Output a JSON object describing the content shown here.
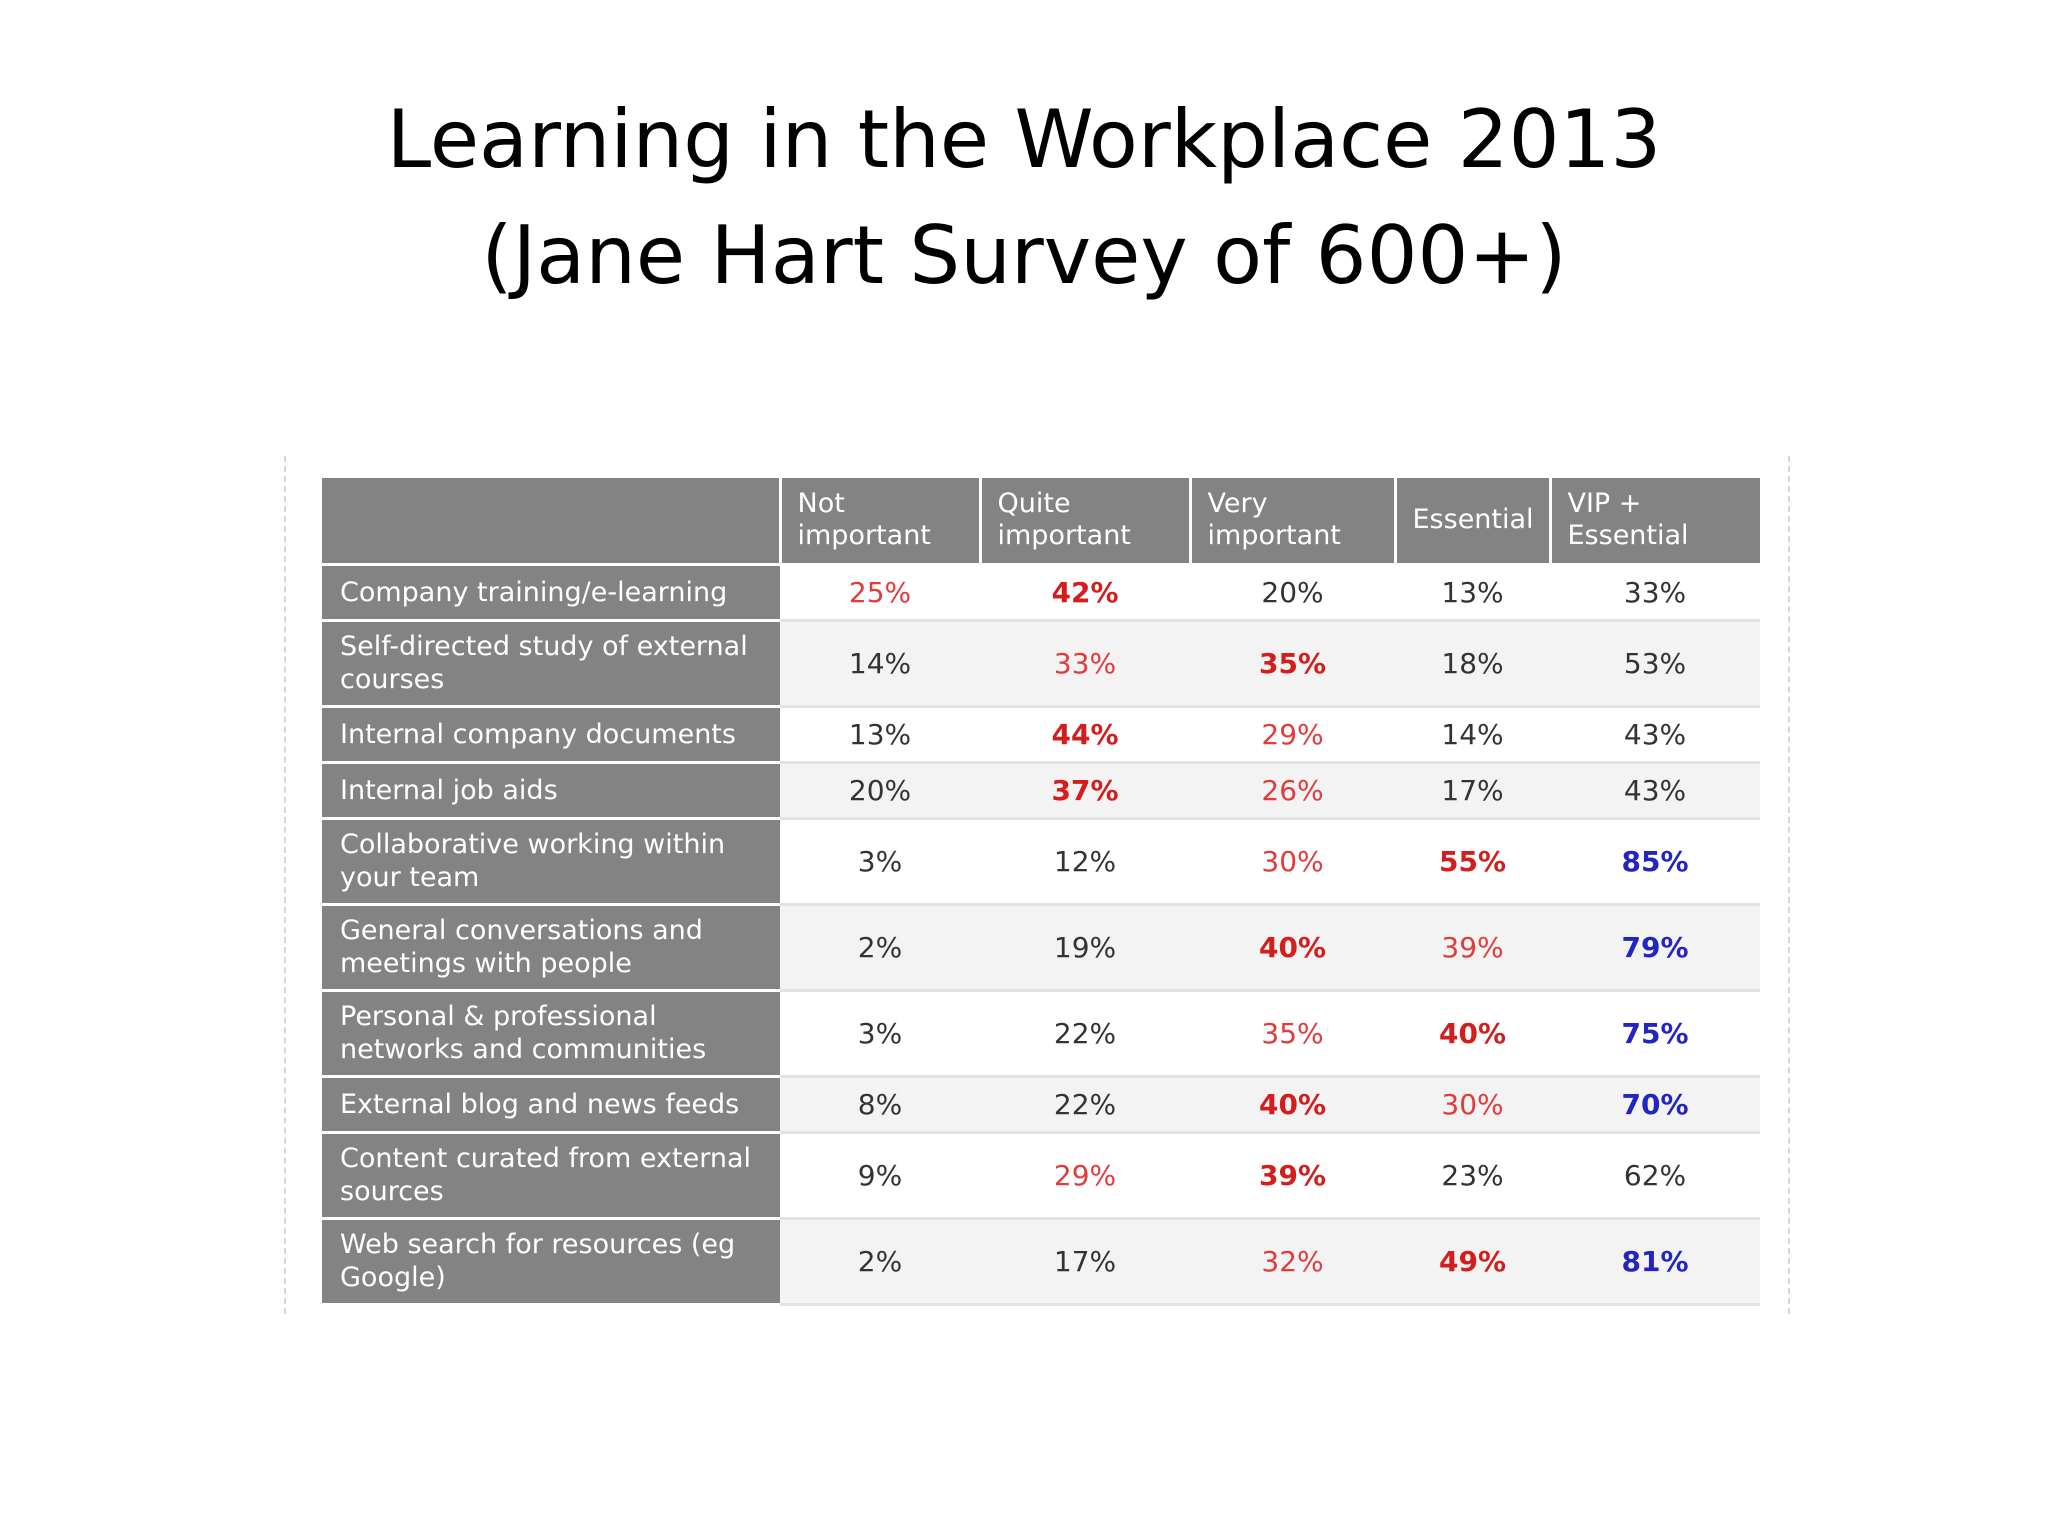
{
  "title_lines": [
    "Learning in the Workplace 2013",
    "(Jane Hart Survey of 600+)"
  ],
  "colors": {
    "header_bg": "#838383",
    "red": "#e23b3b",
    "red_bold": "#d41e1e",
    "blue_bold": "#2424c0",
    "text": "#333333"
  },
  "chart_data": {
    "type": "table",
    "columns": [
      "Not important",
      "Quite important",
      "Very important",
      "Essential",
      "VIP + Essential"
    ],
    "column_lines": [
      [
        "Not",
        "important"
      ],
      [
        "Quite",
        "important"
      ],
      [
        "Very",
        "important"
      ],
      [
        "Essential"
      ],
      [
        "VIP +",
        "Essential"
      ]
    ],
    "rows": [
      {
        "label": "Company training/e-learning",
        "values": [
          "25%",
          "42%",
          "20%",
          "13%",
          "33%"
        ],
        "styles": [
          "red",
          "red-bold",
          "normal",
          "normal",
          "normal"
        ]
      },
      {
        "label": "Self-directed study of external courses",
        "values": [
          "14%",
          "33%",
          "35%",
          "18%",
          "53%"
        ],
        "styles": [
          "normal",
          "red",
          "red-bold",
          "normal",
          "normal"
        ]
      },
      {
        "label": "Internal company documents",
        "values": [
          "13%",
          "44%",
          "29%",
          "14%",
          "43%"
        ],
        "styles": [
          "normal",
          "red-bold",
          "red",
          "normal",
          "normal"
        ]
      },
      {
        "label": "Internal job aids",
        "values": [
          "20%",
          "37%",
          "26%",
          "17%",
          "43%"
        ],
        "styles": [
          "normal",
          "red-bold",
          "red",
          "normal",
          "normal"
        ]
      },
      {
        "label": "Collaborative working within your team",
        "values": [
          "3%",
          "12%",
          "30%",
          "55%",
          "85%"
        ],
        "styles": [
          "normal",
          "normal",
          "red",
          "red-bold",
          "blue-bold"
        ]
      },
      {
        "label": "General conversations and meetings with people",
        "values": [
          "2%",
          "19%",
          "40%",
          "39%",
          "79%"
        ],
        "styles": [
          "normal",
          "normal",
          "red-bold",
          "red",
          "blue-bold"
        ]
      },
      {
        "label": "Personal & professional networks and communities",
        "values": [
          "3%",
          "22%",
          "35%",
          "40%",
          "75%"
        ],
        "styles": [
          "normal",
          "normal",
          "red",
          "red-bold",
          "blue-bold"
        ]
      },
      {
        "label": "External blog and news feeds",
        "values": [
          "8%",
          "22%",
          "40%",
          "30%",
          "70%"
        ],
        "styles": [
          "normal",
          "normal",
          "red-bold",
          "red",
          "blue-bold"
        ]
      },
      {
        "label": "Content curated from external sources",
        "values": [
          "9%",
          "29%",
          "39%",
          "23%",
          "62%"
        ],
        "styles": [
          "normal",
          "red",
          "red-bold",
          "normal",
          "normal"
        ]
      },
      {
        "label": "Web search for resources (eg Google)",
        "values": [
          "2%",
          "17%",
          "32%",
          "49%",
          "81%"
        ],
        "styles": [
          "normal",
          "normal",
          "red",
          "red-bold",
          "blue-bold"
        ]
      }
    ]
  }
}
